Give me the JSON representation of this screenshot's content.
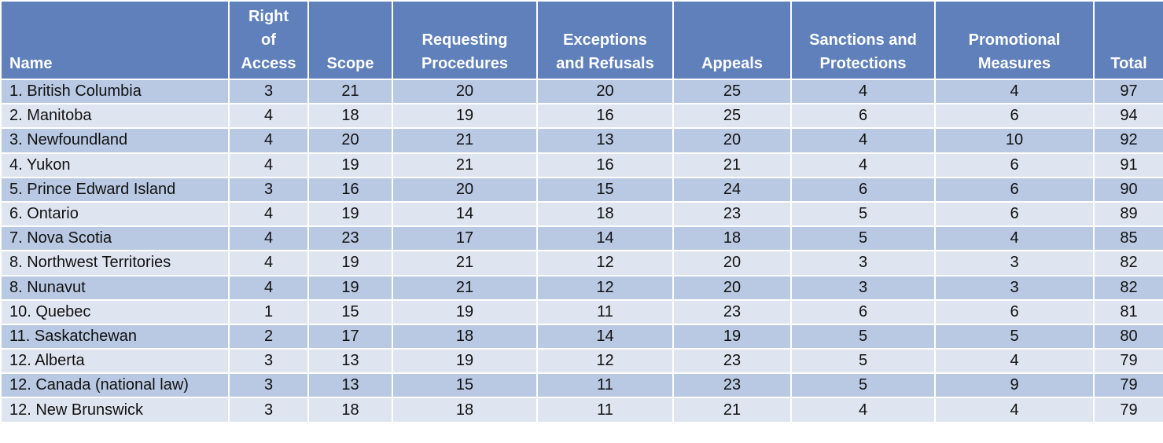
{
  "table": {
    "headers": [
      "Name",
      "Right\nof\nAccess",
      "Scope",
      "Requesting\nProcedures",
      "Exceptions\nand Refusals",
      "Appeals",
      "Sanctions and\nProtections",
      "Promotional\nMeasures",
      "Total"
    ],
    "rows": [
      [
        "1. British Columbia",
        "3",
        "21",
        "20",
        "20",
        "25",
        "4",
        "4",
        "97"
      ],
      [
        "2. Manitoba",
        "4",
        "18",
        "19",
        "16",
        "25",
        "6",
        "6",
        "94"
      ],
      [
        "3. Newfoundland",
        "4",
        "20",
        "21",
        "13",
        "20",
        "4",
        "10",
        "92"
      ],
      [
        "4. Yukon",
        "4",
        "19",
        "21",
        "16",
        "21",
        "4",
        "6",
        "91"
      ],
      [
        "5. Prince Edward Island",
        "3",
        "16",
        "20",
        "15",
        "24",
        "6",
        "6",
        "90"
      ],
      [
        "6. Ontario",
        "4",
        "19",
        "14",
        "18",
        "23",
        "5",
        "6",
        "89"
      ],
      [
        "7. Nova Scotia",
        "4",
        "23",
        "17",
        "14",
        "18",
        "5",
        "4",
        "85"
      ],
      [
        "8. Northwest Territories",
        "4",
        "19",
        "21",
        "12",
        "20",
        "3",
        "3",
        "82"
      ],
      [
        "8. Nunavut",
        "4",
        "19",
        "21",
        "12",
        "20",
        "3",
        "3",
        "82"
      ],
      [
        "10. Quebec",
        "1",
        "15",
        "19",
        "11",
        "23",
        "6",
        "6",
        "81"
      ],
      [
        "11. Saskatchewan",
        "2",
        "17",
        "18",
        "14",
        "19",
        "5",
        "5",
        "80"
      ],
      [
        "12. Alberta",
        "3",
        "13",
        "19",
        "12",
        "23",
        "5",
        "4",
        "79"
      ],
      [
        "12. Canada (national law)",
        "3",
        "13",
        "15",
        "11",
        "23",
        "5",
        "9",
        "79"
      ],
      [
        "12. New Brunswick",
        "3",
        "18",
        "18",
        "11",
        "21",
        "4",
        "4",
        "79"
      ]
    ]
  }
}
